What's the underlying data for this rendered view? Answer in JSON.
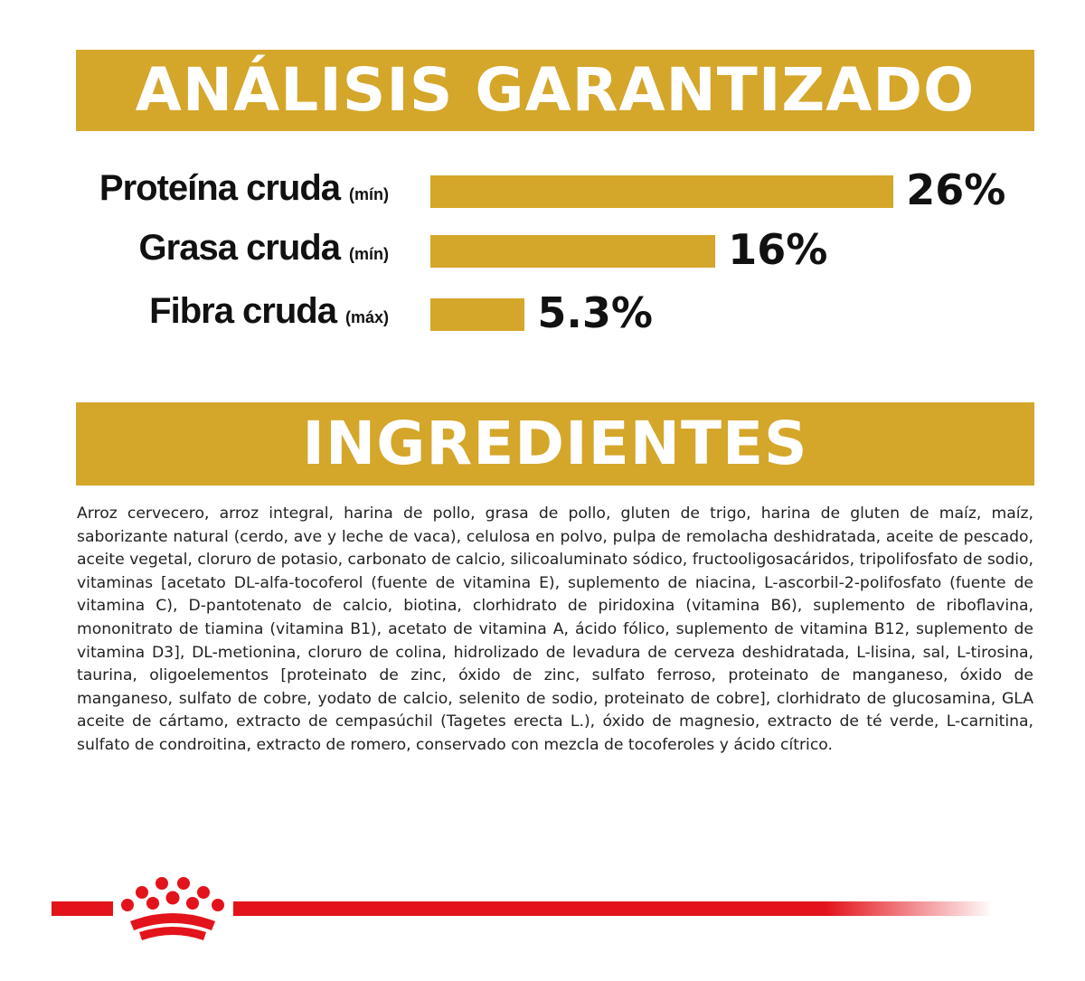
{
  "colors": {
    "gold": "#d4a62a",
    "brand_red": "#e3131b",
    "text": "#111111"
  },
  "analysis": {
    "title": "ANÁLISIS GARANTIZADO",
    "nutrients": [
      {
        "name": "Proteína cruda",
        "qualifier": "(mín)",
        "value": "26%",
        "percent": 26
      },
      {
        "name": "Grasa cruda",
        "qualifier": "(mín)",
        "value": "16%",
        "percent": 16
      },
      {
        "name": "Fibra cruda",
        "qualifier": "(máx)",
        "value": "5.3%",
        "percent": 5.3
      }
    ]
  },
  "ingredients": {
    "title": "INGREDIENTES",
    "text": "Arroz cervecero, arroz integral, harina de pollo, grasa de pollo, gluten de trigo, harina de gluten de maíz, maíz, saborizante natural (cerdo, ave y leche de vaca), celulosa en polvo, pulpa de remolacha deshidratada, aceite de pescado, aceite vegetal, cloruro de potasio, carbonato de calcio, silicoaluminato sódico, fructooligosacáridos, tripolifosfato de sodio, vitaminas [acetato DL-alfa-tocoferol (fuente de vitamina E), suplemento de niacina, L-ascorbil-2-polifosfato (fuente de vitamina C), D-pantotenato de calcio, biotina, clorhidrato de piridoxina (vitamina B6), suplemento de riboflavina, mononitrato de tiamina (vitamina B1), acetato de vitamina A, ácido fólico, suplemento de vitamina B12, suplemento de vitamina D3], DL-metionina, cloruro de colina, hidrolizado de levadura de cerveza deshidratada, L-lisina, sal, L-tirosina, taurina, oligoelementos [proteinato de zinc, óxido de zinc, sulfato ferroso, proteinato de manganeso, óxido de manganeso, sulfato de cobre, yodato de calcio, selenito de sodio, proteinato de cobre], clorhidrato de glucosamina, GLA aceite de cártamo, extracto de cempasúchil (Tagetes erecta L.), óxido de magnesio, extracto de té verde, L-carnitina, sulfato de condroitina, extracto de romero, conservado con mezcla de tocoferoles y ácido cítrico."
  },
  "footer": {
    "logo_icon": "royal-canin-crown-icon"
  }
}
